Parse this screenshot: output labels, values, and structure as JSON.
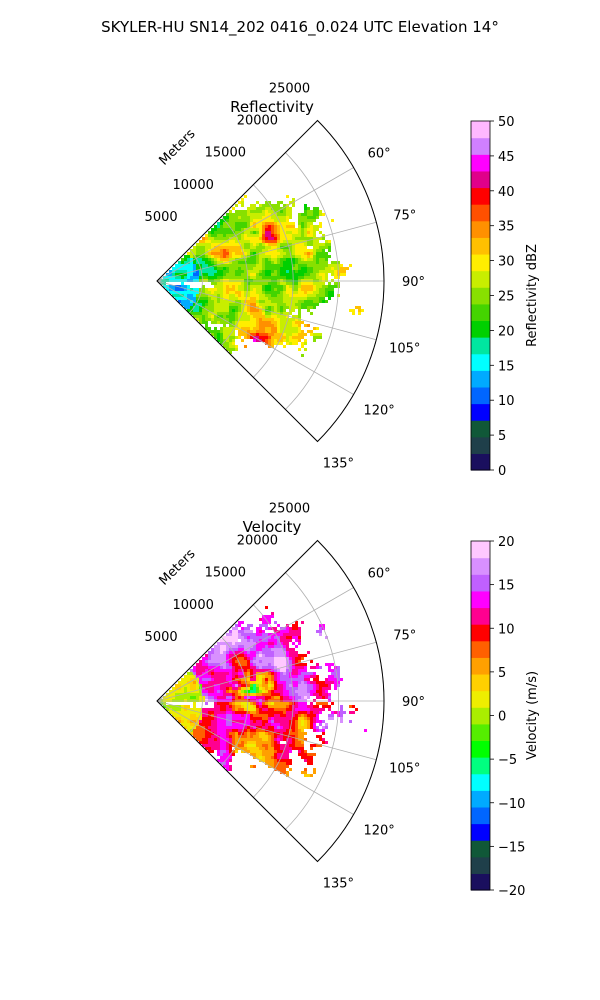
{
  "suptitle": "SKYLER-HU  SN14_202  0416_0.024 UTC Elevation 14°",
  "chart_data": [
    {
      "type": "heatmap",
      "title": "Reflectivity",
      "radial_label": "Meters",
      "r_ticks": [
        5000,
        10000,
        15000,
        20000,
        25000
      ],
      "r_tick_labels": [
        "5000",
        "10000",
        "15000",
        "20000",
        "25000"
      ],
      "r_max": 25000,
      "azimuth_range": [
        45,
        135
      ],
      "theta_ticks": [
        60,
        75,
        90,
        105,
        120,
        135
      ],
      "theta_tick_labels": [
        "60°",
        "75°",
        "90°",
        "105°",
        "120°",
        "135°"
      ],
      "grid": true,
      "colorbar": {
        "label": "Reflectivity dBZ",
        "min": 0,
        "max": 50,
        "ticks": [
          0,
          5,
          10,
          15,
          20,
          25,
          30,
          35,
          40,
          45,
          50
        ],
        "tick_labels": [
          "0",
          "5",
          "10",
          "15",
          "20",
          "25",
          "30",
          "35",
          "40",
          "45",
          "50"
        ],
        "colors": [
          "#1a0f5e",
          "#1f3f4a",
          "#105838",
          "#0000ff",
          "#0066ff",
          "#00aaff",
          "#00ffff",
          "#00e6a0",
          "#00d000",
          "#44d400",
          "#88e000",
          "#c8ee00",
          "#ffee00",
          "#ffc000",
          "#ff9000",
          "#ff5000",
          "#ff0000",
          "#e0008a",
          "#ff00ff",
          "#d080ff",
          "#ffb8ff"
        ]
      }
    },
    {
      "type": "heatmap",
      "title": "Velocity",
      "radial_label": "Meters",
      "r_ticks": [
        5000,
        10000,
        15000,
        20000,
        25000
      ],
      "r_tick_labels": [
        "5000",
        "10000",
        "15000",
        "20000",
        "25000"
      ],
      "r_max": 25000,
      "azimuth_range": [
        45,
        135
      ],
      "theta_ticks": [
        60,
        75,
        90,
        105,
        120,
        135
      ],
      "theta_tick_labels": [
        "60°",
        "75°",
        "90°",
        "105°",
        "120°",
        "135°"
      ],
      "grid": true,
      "colorbar": {
        "label": "Velocity (m/s)",
        "min": -20,
        "max": 20,
        "ticks": [
          -20,
          -15,
          -10,
          -5,
          0,
          5,
          10,
          15,
          20
        ],
        "tick_labels": [
          "−20",
          "−15",
          "−10",
          "−5",
          "0",
          "5",
          "10",
          "15",
          "20"
        ],
        "colors": [
          "#1a0f5e",
          "#1f3f4a",
          "#105838",
          "#0000ff",
          "#0066ff",
          "#00aaff",
          "#00ffff",
          "#00ff80",
          "#00ff00",
          "#55ee00",
          "#aaee00",
          "#eeee00",
          "#ffd000",
          "#ffa000",
          "#ff6000",
          "#ff0000",
          "#ff0090",
          "#ff00ff",
          "#c060ff",
          "#d890ff",
          "#ffc8ff"
        ]
      }
    }
  ]
}
